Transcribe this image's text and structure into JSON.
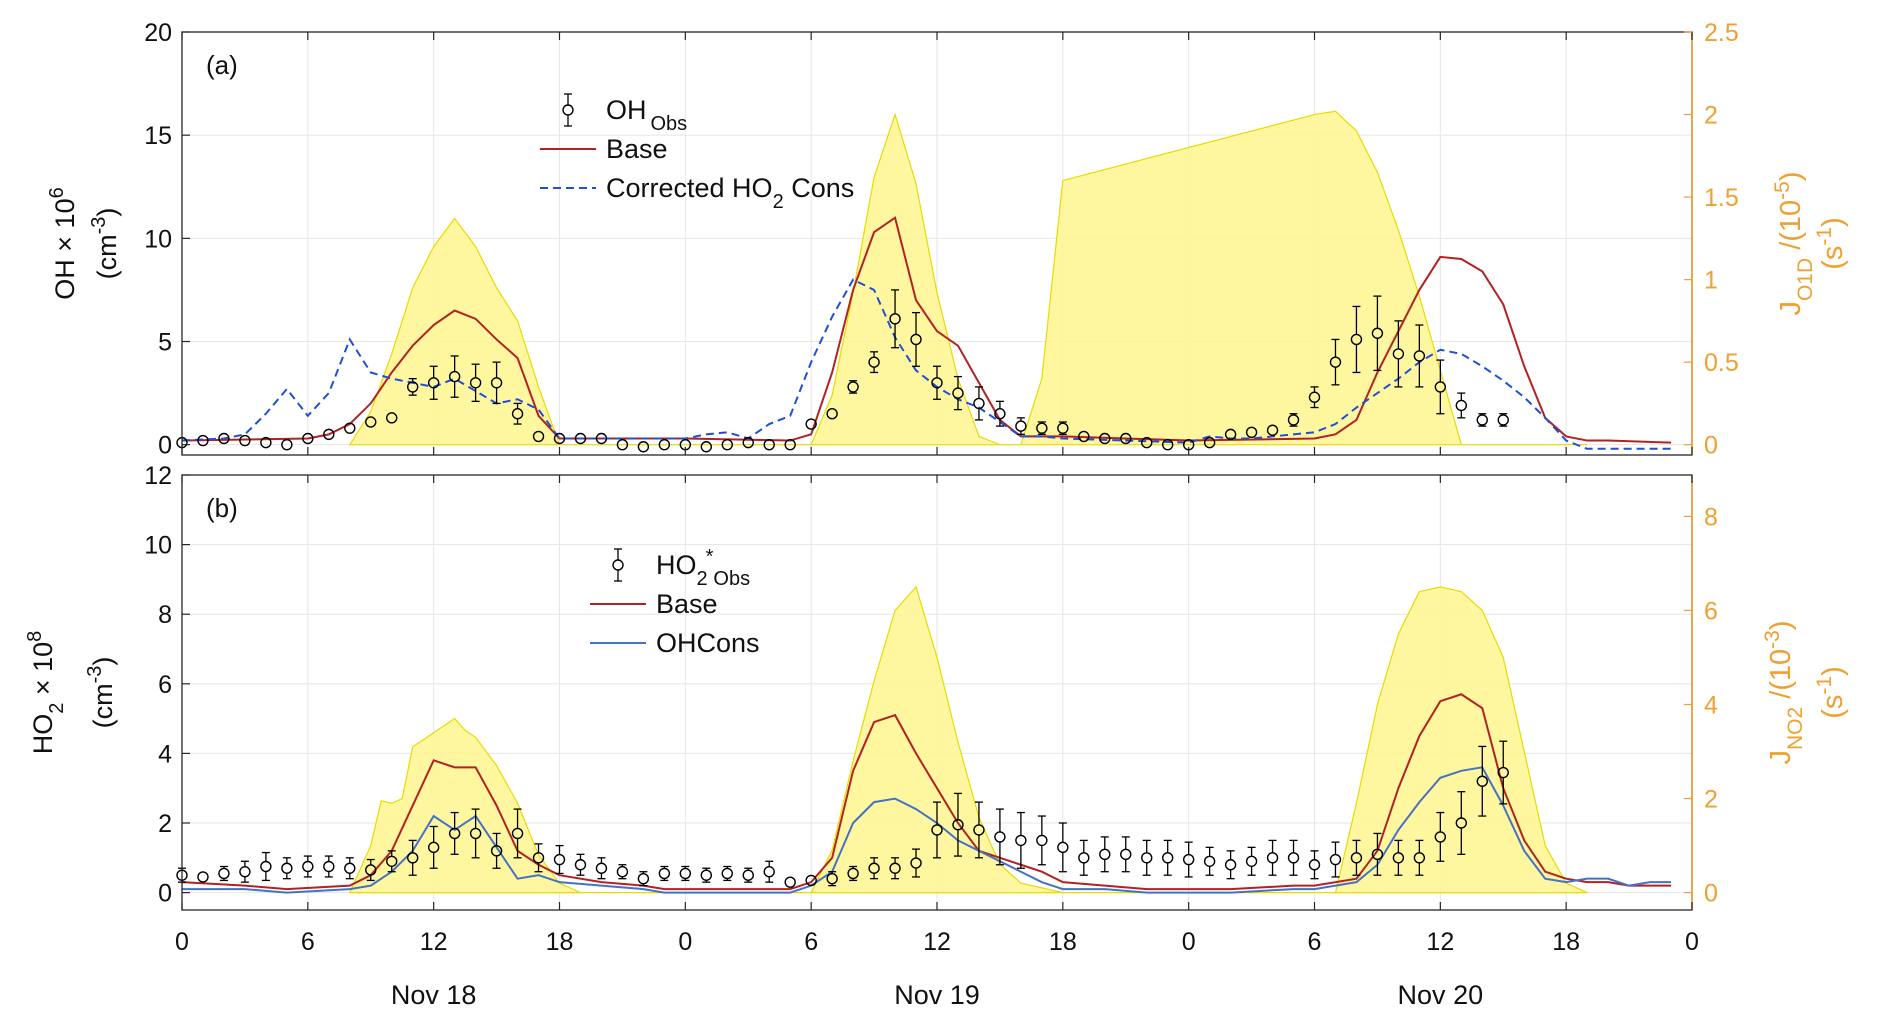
{
  "colors": {
    "obs": "#000000",
    "base": "#b22222",
    "corrected": "#1f4fd8",
    "ohcons": "#4472c4",
    "jfill": "#fff68f",
    "jline": "#e6dc00",
    "right_axis": "#f0a030",
    "grid": "#e6e6e6"
  },
  "x_axis": {
    "ticks": [
      0,
      6,
      12,
      18,
      24,
      30,
      36,
      42,
      48,
      54,
      60,
      66,
      72
    ],
    "tick_labels": [
      "0",
      "6",
      "12",
      "18",
      "0",
      "6",
      "12",
      "18",
      "0",
      "6",
      "12",
      "18",
      "0"
    ],
    "day_labels": [
      "Nov 18",
      "Nov 19",
      "Nov 20"
    ],
    "day_label_hours": [
      12,
      36,
      60
    ]
  },
  "chart_data": [
    {
      "type": "line",
      "panel_label": "(a)",
      "ylabel_line1": "OH × 10",
      "ylabel_line1_sup": "6",
      "ylabel_line2": "(cm",
      "ylabel_line2_sup": "-3",
      "ylabel_line2_end": ")",
      "ylim": [
        -0.5,
        20
      ],
      "yticks": [
        0,
        5,
        10,
        15,
        20
      ],
      "xlim": [
        0,
        72
      ],
      "grid": true,
      "legend_position": "top-center",
      "right_axis": {
        "label_main": "J",
        "label_sub": "O1D",
        "label_tail": " /(10",
        "label_sup": "-5",
        "label_end": ")",
        "unit_pre": "(s",
        "unit_sup": "-1",
        "unit_end": ")",
        "ylim": [
          -0.0625,
          2.5
        ],
        "yticks": [
          0,
          0.5,
          1,
          1.5,
          2,
          2.5
        ],
        "tick_labels": [
          "0",
          "0.5",
          "1",
          "1.5",
          "2",
          "2.5"
        ]
      },
      "legend": {
        "obs": {
          "main": "OH",
          "sub": "Obs"
        },
        "base": {
          "main": "Base"
        },
        "corrected": {
          "main": "Corrected HO",
          "sub": "2",
          "tail": " Cons"
        }
      },
      "jvalue": {
        "x": [
          8,
          9,
          10,
          11,
          12,
          13,
          14,
          15,
          16,
          17,
          18,
          30,
          31,
          32,
          33,
          34,
          35,
          36,
          37,
          38,
          39,
          40,
          41,
          42,
          54,
          55,
          56,
          57,
          58,
          59,
          60,
          61,
          62,
          63,
          64,
          65,
          66,
          67
        ],
        "y": [
          0,
          0.2,
          0.55,
          0.95,
          1.2,
          1.37,
          1.2,
          0.95,
          0.75,
          0.35,
          0,
          0,
          0.3,
          0.92,
          1.62,
          2.0,
          1.58,
          0.92,
          0.4,
          0.05,
          0,
          0,
          0.4,
          1.6,
          2.0,
          2.02,
          1.9,
          1.65,
          1.3,
          0.9,
          0.45,
          0,
          0,
          0,
          0,
          0,
          0,
          0
        ]
      },
      "series": [
        {
          "key": "base",
          "x": [
            0,
            6,
            7,
            8,
            9,
            10,
            11,
            12,
            13,
            14,
            15,
            16,
            17,
            18,
            24,
            29,
            30,
            31,
            32,
            33,
            34,
            35,
            36,
            37,
            38,
            39,
            40,
            41,
            42,
            48,
            54,
            55,
            56,
            57,
            58,
            59,
            60,
            61,
            62,
            63,
            64,
            65,
            66,
            67,
            68,
            71
          ],
          "y": [
            0.2,
            0.3,
            0.5,
            1.0,
            2.0,
            3.5,
            4.8,
            5.8,
            6.5,
            6.1,
            5.1,
            4.2,
            1.4,
            0.3,
            0.3,
            0.2,
            0.5,
            3.5,
            7.5,
            10.3,
            11.0,
            7.0,
            5.5,
            4.8,
            3.0,
            1.2,
            0.4,
            0.4,
            0.4,
            0.2,
            0.3,
            0.5,
            1.2,
            3.5,
            5.5,
            7.5,
            9.1,
            9.0,
            8.4,
            6.8,
            3.8,
            1.3,
            0.4,
            0.2,
            0.2,
            0.1
          ]
        },
        {
          "key": "corrected",
          "x": [
            0,
            2,
            3,
            4,
            5,
            6,
            7,
            8,
            9,
            10,
            11,
            12,
            13,
            14,
            15,
            16,
            17,
            18,
            24,
            25,
            26,
            27,
            28,
            29,
            30,
            31,
            32,
            33,
            34,
            35,
            36,
            37,
            38,
            39,
            40,
            41,
            42,
            48,
            49,
            50,
            51,
            52,
            53,
            54,
            55,
            56,
            57,
            58,
            59,
            60,
            61,
            62,
            63,
            64,
            65,
            66,
            67,
            68,
            69,
            70,
            71
          ],
          "y": [
            0.2,
            0.3,
            0.5,
            1.5,
            2.7,
            1.4,
            2.5,
            5.1,
            3.5,
            3.2,
            3.0,
            2.8,
            3.2,
            2.6,
            2.0,
            2.2,
            1.7,
            0.3,
            0.3,
            0.5,
            0.6,
            0.3,
            1.0,
            1.4,
            4.0,
            6.2,
            8.0,
            7.5,
            5.2,
            3.6,
            2.8,
            2.2,
            1.8,
            1.1,
            0.4,
            0.4,
            0.3,
            0.1,
            0.4,
            0.3,
            0.3,
            0.4,
            0.5,
            0.6,
            1.0,
            1.8,
            2.5,
            3.2,
            4.0,
            4.6,
            4.4,
            3.8,
            3.1,
            2.3,
            1.3,
            0.2,
            -0.2,
            -0.2,
            -0.2,
            -0.2,
            -0.2
          ]
        }
      ],
      "observations": {
        "x": [
          0,
          1,
          2,
          3,
          4,
          5,
          6,
          7,
          8,
          9,
          10,
          11,
          12,
          13,
          14,
          15,
          16,
          17,
          18,
          19,
          20,
          21,
          22,
          23,
          24,
          25,
          26,
          27,
          28,
          29,
          30,
          31,
          32,
          33,
          34,
          35,
          36,
          37,
          38,
          39,
          40,
          41,
          42,
          43,
          44,
          45,
          46,
          47,
          48,
          49,
          50,
          51,
          52,
          53,
          54,
          55,
          56,
          57,
          58,
          59,
          60,
          61,
          62,
          63
        ],
        "y": [
          0.1,
          0.2,
          0.3,
          0.2,
          0.1,
          0.0,
          0.3,
          0.5,
          0.8,
          1.1,
          1.3,
          2.8,
          3.0,
          3.3,
          3.0,
          3.0,
          1.5,
          0.4,
          0.3,
          0.3,
          0.3,
          0.0,
          -0.1,
          0.0,
          0.0,
          -0.1,
          0.0,
          0.1,
          0.0,
          0.0,
          1.0,
          1.5,
          2.8,
          4.0,
          6.1,
          5.1,
          3.0,
          2.5,
          2.0,
          1.5,
          0.9,
          0.8,
          0.8,
          0.4,
          0.3,
          0.3,
          0.1,
          0.0,
          0.0,
          0.1,
          0.5,
          0.6,
          0.7,
          1.2,
          2.3,
          4.0,
          5.1,
          5.4,
          4.4,
          4.3,
          2.8,
          1.9,
          1.2,
          1.2
        ],
        "err": [
          0.1,
          0.1,
          0.1,
          0.1,
          0.1,
          0.1,
          0.1,
          0.1,
          0.1,
          0.1,
          0.1,
          0.4,
          0.8,
          1.0,
          0.9,
          1.0,
          0.5,
          0.1,
          0.1,
          0.1,
          0.1,
          0.1,
          0.1,
          0.1,
          0.1,
          0.1,
          0.1,
          0.1,
          0.1,
          0.1,
          0.2,
          0.2,
          0.3,
          0.5,
          1.4,
          1.3,
          0.8,
          0.8,
          0.8,
          0.6,
          0.4,
          0.3,
          0.3,
          0.2,
          0.1,
          0.1,
          0.1,
          0.1,
          0.1,
          0.1,
          0.1,
          0.1,
          0.2,
          0.3,
          0.5,
          1.1,
          1.6,
          1.8,
          1.6,
          1.5,
          1.3,
          0.6,
          0.3,
          0.3
        ]
      }
    },
    {
      "type": "line",
      "panel_label": "(b)",
      "ylabel_line1": "HO",
      "ylabel_line1_sub": "2",
      "ylabel_line1_tail": " × 10",
      "ylabel_line1_sup": "8",
      "ylabel_line2": "(cm",
      "ylabel_line2_sup": "-3",
      "ylabel_line2_end": ")",
      "ylim": [
        -0.5,
        12
      ],
      "yticks": [
        0,
        2,
        4,
        6,
        8,
        10,
        12
      ],
      "xlim": [
        0,
        72
      ],
      "grid": true,
      "legend_position": "top-center",
      "right_axis": {
        "label_main": "J",
        "label_sub": "NO2",
        "label_tail": " /(10",
        "label_sup": "-3",
        "label_end": ")",
        "unit_pre": "(s",
        "unit_sup": "-1",
        "unit_end": ")",
        "ylim": [
          -0.37,
          8.88
        ],
        "yticks": [
          0,
          2,
          4,
          6,
          8
        ],
        "tick_labels": [
          "0",
          "2",
          "4",
          "6",
          "8"
        ]
      },
      "legend": {
        "obs": {
          "main": "HO",
          "sub1": "2",
          "sup": "*",
          "sub2": "Obs"
        },
        "base": {
          "main": "Base"
        },
        "ohcons": {
          "main": "OHCons"
        }
      },
      "jvalue": {
        "x": [
          8,
          9,
          9.5,
          10,
          10.5,
          11,
          12,
          13,
          13.5,
          14,
          15,
          16,
          17,
          18,
          19,
          30,
          31,
          32,
          33,
          34,
          35,
          36,
          37,
          38,
          39,
          40,
          41,
          42,
          55,
          56,
          57,
          58,
          59,
          60,
          61,
          62,
          63,
          64,
          65,
          66,
          67
        ],
        "y": [
          0,
          1.0,
          1.95,
          1.9,
          2.0,
          3.1,
          3.4,
          3.7,
          3.45,
          3.3,
          2.7,
          1.9,
          0.8,
          0.2,
          0,
          0,
          0.9,
          2.8,
          4.5,
          6.0,
          6.5,
          5.0,
          3.2,
          1.6,
          0.6,
          0.2,
          0.1,
          0,
          0,
          1.9,
          4.0,
          5.5,
          6.4,
          6.5,
          6.4,
          6.0,
          5.0,
          3.0,
          1.0,
          0.2,
          0
        ]
      },
      "series": [
        {
          "key": "base",
          "x": [
            0,
            3,
            5,
            8,
            9,
            10,
            11,
            12,
            13,
            14,
            15,
            16,
            17,
            18,
            20,
            22,
            23,
            24,
            29,
            30,
            31,
            32,
            33,
            34,
            35,
            36,
            37,
            38,
            39,
            40,
            41,
            42,
            44,
            46,
            48,
            50,
            53,
            54,
            56,
            57,
            58,
            59,
            60,
            61,
            62,
            63,
            64,
            65,
            66,
            67,
            68,
            69,
            70,
            71
          ],
          "y": [
            0.3,
            0.2,
            0.1,
            0.2,
            0.5,
            1.2,
            2.5,
            3.8,
            3.6,
            3.6,
            2.5,
            1.2,
            0.8,
            0.5,
            0.3,
            0.2,
            0.1,
            0.1,
            0.1,
            0.3,
            1.0,
            3.5,
            4.9,
            5.1,
            4.0,
            3.0,
            2.0,
            1.2,
            1.0,
            0.8,
            0.6,
            0.3,
            0.2,
            0.1,
            0.1,
            0.1,
            0.2,
            0.2,
            0.4,
            1.2,
            3.0,
            4.5,
            5.5,
            5.7,
            5.3,
            3.0,
            1.5,
            0.6,
            0.4,
            0.3,
            0.3,
            0.2,
            0.2,
            0.2
          ]
        },
        {
          "key": "ohcons",
          "x": [
            0,
            3,
            5,
            8,
            9,
            10,
            11,
            12,
            13,
            14,
            15,
            16,
            17,
            18,
            20,
            22,
            23,
            24,
            29,
            30,
            31,
            32,
            33,
            34,
            35,
            36,
            37,
            38,
            39,
            40,
            41,
            42,
            44,
            46,
            48,
            50,
            53,
            54,
            56,
            57,
            58,
            59,
            60,
            61,
            62,
            63,
            64,
            65,
            66,
            67,
            68,
            69,
            70,
            71
          ],
          "y": [
            0.1,
            0.1,
            0.0,
            0.1,
            0.2,
            0.6,
            1.2,
            2.2,
            1.8,
            2.2,
            1.3,
            0.4,
            0.5,
            0.3,
            0.2,
            0.1,
            0.0,
            0.0,
            0.0,
            0.2,
            0.6,
            2.0,
            2.6,
            2.7,
            2.4,
            2.0,
            1.5,
            1.2,
            0.9,
            0.6,
            0.3,
            0.1,
            0.1,
            0.0,
            0.0,
            0.0,
            0.1,
            0.1,
            0.3,
            0.8,
            1.8,
            2.6,
            3.3,
            3.5,
            3.6,
            2.5,
            1.2,
            0.4,
            0.3,
            0.4,
            0.4,
            0.2,
            0.3,
            0.3
          ]
        }
      ],
      "observations": {
        "x": [
          0,
          1,
          2,
          3,
          4,
          5,
          6,
          7,
          8,
          9,
          10,
          11,
          12,
          13,
          14,
          15,
          16,
          17,
          18,
          19,
          20,
          21,
          22,
          23,
          24,
          25,
          26,
          27,
          28,
          29,
          30,
          31,
          32,
          33,
          34,
          35,
          36,
          37,
          38,
          39,
          40,
          41,
          42,
          43,
          44,
          45,
          46,
          47,
          48,
          49,
          50,
          51,
          52,
          53,
          54,
          55,
          56,
          57,
          58,
          59,
          60,
          61,
          62,
          63
        ],
        "y": [
          0.5,
          0.45,
          0.55,
          0.6,
          0.75,
          0.7,
          0.75,
          0.75,
          0.7,
          0.65,
          0.9,
          1.0,
          1.3,
          1.7,
          1.7,
          1.2,
          1.7,
          1.0,
          0.95,
          0.8,
          0.7,
          0.6,
          0.4,
          0.55,
          0.55,
          0.5,
          0.55,
          0.5,
          0.6,
          0.3,
          0.35,
          0.4,
          0.55,
          0.7,
          0.7,
          0.85,
          1.8,
          1.95,
          1.8,
          1.6,
          1.5,
          1.5,
          1.3,
          1.0,
          1.1,
          1.1,
          1.0,
          1.0,
          0.95,
          0.9,
          0.8,
          0.9,
          1.0,
          1.0,
          0.8,
          0.95,
          1.0,
          1.1,
          1.0,
          1.0,
          1.6,
          2.0,
          3.2,
          3.45
        ],
        "err": [
          0.2,
          0.1,
          0.2,
          0.3,
          0.4,
          0.3,
          0.3,
          0.3,
          0.3,
          0.3,
          0.3,
          0.5,
          0.6,
          0.6,
          0.7,
          0.5,
          0.7,
          0.4,
          0.4,
          0.3,
          0.3,
          0.2,
          0.2,
          0.2,
          0.2,
          0.2,
          0.2,
          0.2,
          0.3,
          0.1,
          0.1,
          0.2,
          0.2,
          0.3,
          0.3,
          0.4,
          0.8,
          0.9,
          0.8,
          0.8,
          0.8,
          0.7,
          0.7,
          0.5,
          0.5,
          0.5,
          0.5,
          0.5,
          0.5,
          0.4,
          0.4,
          0.4,
          0.5,
          0.5,
          0.4,
          0.5,
          0.5,
          0.6,
          0.5,
          0.5,
          0.7,
          0.9,
          1.0,
          0.9
        ]
      }
    }
  ]
}
